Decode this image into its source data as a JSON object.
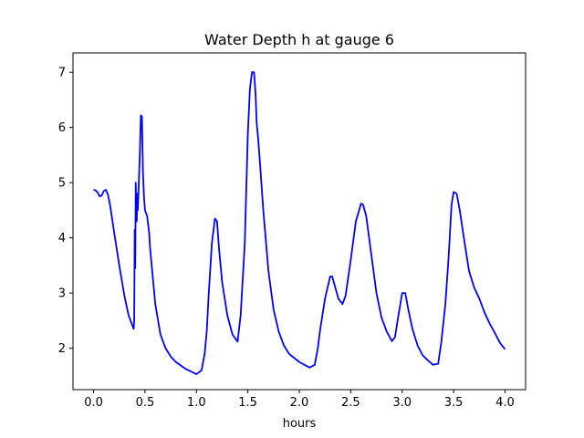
{
  "chart_data": {
    "type": "line",
    "title": "Water Depth h at gauge 6",
    "xlabel": "hours",
    "ylabel": "",
    "xlim": [
      -0.2,
      4.2
    ],
    "ylim": [
      1.25,
      7.35
    ],
    "xticks": [
      0.0,
      0.5,
      1.0,
      1.5,
      2.0,
      2.5,
      3.0,
      3.5,
      4.0
    ],
    "xtick_labels": [
      "0.0",
      "0.5",
      "1.0",
      "1.5",
      "2.0",
      "2.5",
      "3.0",
      "3.5",
      "4.0"
    ],
    "yticks": [
      2,
      3,
      4,
      5,
      6,
      7
    ],
    "ytick_labels": [
      "2",
      "3",
      "4",
      "5",
      "6",
      "7"
    ],
    "grid": false,
    "series": [
      {
        "color": "#0000ff",
        "x": [
          0.0,
          0.02,
          0.04,
          0.06,
          0.08,
          0.1,
          0.12,
          0.14,
          0.16,
          0.2,
          0.25,
          0.3,
          0.34,
          0.37,
          0.39,
          0.395,
          0.4,
          0.405,
          0.41,
          0.415,
          0.42,
          0.425,
          0.43,
          0.44,
          0.45,
          0.46,
          0.47,
          0.48,
          0.49,
          0.5,
          0.52,
          0.54,
          0.55,
          0.57,
          0.6,
          0.65,
          0.7,
          0.75,
          0.8,
          0.9,
          1.0,
          1.05,
          1.08,
          1.1,
          1.12,
          1.15,
          1.18,
          1.2,
          1.22,
          1.25,
          1.3,
          1.35,
          1.4,
          1.43,
          1.47,
          1.5,
          1.52,
          1.54,
          1.56,
          1.575,
          1.585,
          1.6,
          1.62,
          1.65,
          1.7,
          1.75,
          1.8,
          1.85,
          1.9,
          2.0,
          2.1,
          2.15,
          2.18,
          2.2,
          2.25,
          2.3,
          2.32,
          2.35,
          2.38,
          2.42,
          2.45,
          2.5,
          2.55,
          2.6,
          2.62,
          2.65,
          2.7,
          2.75,
          2.8,
          2.85,
          2.9,
          2.93,
          2.96,
          3.0,
          3.03,
          3.06,
          3.1,
          3.15,
          3.2,
          3.25,
          3.3,
          3.35,
          3.38,
          3.42,
          3.45,
          3.48,
          3.5,
          3.53,
          3.56,
          3.6,
          3.65,
          3.7,
          3.75,
          3.8,
          3.85,
          3.9,
          3.95,
          4.0
        ],
        "y": [
          4.87,
          4.86,
          4.82,
          4.75,
          4.77,
          4.85,
          4.87,
          4.78,
          4.6,
          4.1,
          3.5,
          2.95,
          2.6,
          2.45,
          2.35,
          2.5,
          4.15,
          3.45,
          5.0,
          4.6,
          4.3,
          4.8,
          4.5,
          5.0,
          5.55,
          6.22,
          6.2,
          5.2,
          4.75,
          4.5,
          4.4,
          4.1,
          3.8,
          3.4,
          2.8,
          2.25,
          2.0,
          1.85,
          1.75,
          1.62,
          1.53,
          1.6,
          1.9,
          2.3,
          3.0,
          3.9,
          4.35,
          4.3,
          3.8,
          3.2,
          2.6,
          2.25,
          2.12,
          2.6,
          3.9,
          5.9,
          6.7,
          7.0,
          7.0,
          6.6,
          6.1,
          5.8,
          5.3,
          4.5,
          3.4,
          2.7,
          2.3,
          2.05,
          1.9,
          1.75,
          1.65,
          1.7,
          2.0,
          2.3,
          2.9,
          3.3,
          3.3,
          3.1,
          2.9,
          2.8,
          2.95,
          3.6,
          4.3,
          4.62,
          4.6,
          4.4,
          3.7,
          3.0,
          2.55,
          2.3,
          2.13,
          2.2,
          2.55,
          3.0,
          3.0,
          2.7,
          2.35,
          2.05,
          1.87,
          1.78,
          1.7,
          1.72,
          2.1,
          2.8,
          3.6,
          4.6,
          4.83,
          4.8,
          4.5,
          4.0,
          3.4,
          3.1,
          2.9,
          2.65,
          2.45,
          2.28,
          2.1,
          1.98
        ]
      }
    ]
  }
}
